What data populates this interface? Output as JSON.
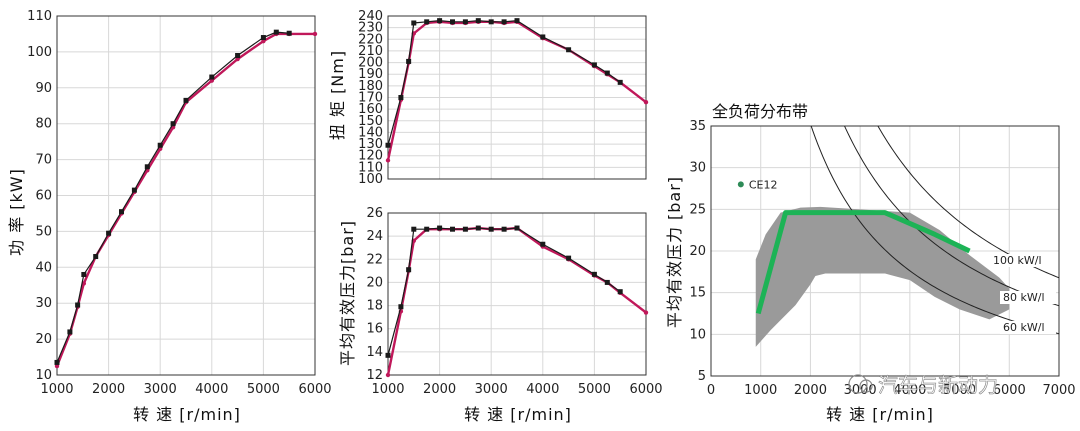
{
  "chart_data": [
    {
      "type": "line",
      "ylabel": "功 率 [kW]",
      "xlabel": "转 速 [r/min]",
      "xlim": [
        1000,
        6000
      ],
      "ylim": [
        10,
        110
      ],
      "xticks": [
        1000,
        2000,
        3000,
        4000,
        5000,
        6000
      ],
      "yticks": [
        10,
        20,
        30,
        40,
        50,
        60,
        70,
        80,
        90,
        100,
        110
      ],
      "grid": true,
      "series": [
        {
          "color": "#c0185a",
          "style": "dot",
          "x": [
            1000,
            1250,
            1400,
            1520,
            1750,
            2000,
            2250,
            2500,
            2750,
            3000,
            3250,
            3500,
            4000,
            4500,
            5000,
            5250,
            5500,
            6000
          ],
          "y": [
            12.5,
            21.5,
            29,
            35.5,
            43,
            49,
            55,
            61,
            67,
            73,
            79,
            86,
            92,
            98,
            103,
            105,
            105,
            105
          ]
        },
        {
          "color": "#1a1a1a",
          "style": "square",
          "x": [
            1000,
            1250,
            1400,
            1520,
            1750,
            2000,
            2250,
            2500,
            2750,
            3000,
            3250,
            3500,
            4000,
            4500,
            5000,
            5250,
            5500
          ],
          "y": [
            13.5,
            22,
            29.5,
            38,
            43,
            49.5,
            55.5,
            61.5,
            68,
            74,
            80,
            86.5,
            93,
            99,
            104,
            105.5,
            105.2
          ]
        }
      ]
    },
    {
      "type": "line",
      "ylabel": "扭 矩 [Nm]",
      "xlim": [
        1000,
        6000
      ],
      "ylim": [
        100,
        240
      ],
      "yticks": [
        100,
        110,
        120,
        130,
        140,
        150,
        160,
        170,
        180,
        190,
        200,
        210,
        220,
        230,
        240
      ],
      "grid": true,
      "series": [
        {
          "color": "#c0185a",
          "style": "dot",
          "x": [
            1000,
            1250,
            1400,
            1500,
            1750,
            2000,
            2250,
            2500,
            2750,
            3000,
            3250,
            3500,
            4000,
            4500,
            5000,
            5250,
            5500,
            6000
          ],
          "y": [
            116,
            168,
            200,
            225,
            234,
            235,
            234,
            234,
            235,
            235,
            234,
            235,
            221,
            211,
            197,
            190,
            183,
            166
          ]
        },
        {
          "color": "#1a1a1a",
          "style": "square",
          "x": [
            1000,
            1250,
            1400,
            1500,
            1750,
            2000,
            2250,
            2500,
            2750,
            3000,
            3250,
            3500,
            4000,
            4500,
            5000,
            5250,
            5500
          ],
          "y": [
            129,
            170,
            201,
            234,
            235,
            236,
            235,
            235,
            236,
            235,
            235,
            236,
            222,
            211,
            198,
            191,
            183
          ]
        }
      ]
    },
    {
      "type": "line",
      "ylabel": "平均有效压力[bar]",
      "xlabel": "转 速 [r/min]",
      "xlim": [
        1000,
        6000
      ],
      "ylim": [
        12,
        26
      ],
      "xticks": [
        1000,
        2000,
        3000,
        4000,
        5000,
        6000
      ],
      "yticks": [
        12,
        14,
        16,
        18,
        20,
        22,
        24,
        26
      ],
      "grid": true,
      "series": [
        {
          "color": "#c0185a",
          "style": "dot",
          "x": [
            1000,
            1250,
            1400,
            1500,
            1750,
            2000,
            2250,
            2500,
            2750,
            3000,
            3250,
            3500,
            4000,
            4500,
            5000,
            5250,
            5500,
            6000
          ],
          "y": [
            12.0,
            17.5,
            21.0,
            23.6,
            24.6,
            24.6,
            24.6,
            24.6,
            24.7,
            24.6,
            24.6,
            24.7,
            23.1,
            22.0,
            20.6,
            20.0,
            19.1,
            17.4
          ]
        },
        {
          "color": "#1a1a1a",
          "style": "square",
          "x": [
            1000,
            1250,
            1400,
            1500,
            1750,
            2000,
            2250,
            2500,
            2750,
            3000,
            3250,
            3500,
            4000,
            4500,
            5000,
            5250,
            5500
          ],
          "y": [
            13.7,
            17.9,
            21.1,
            24.6,
            24.6,
            24.7,
            24.6,
            24.6,
            24.7,
            24.6,
            24.6,
            24.7,
            23.3,
            22.1,
            20.7,
            20.0,
            19.2
          ]
        }
      ]
    },
    {
      "type": "area",
      "title": "全负荷分布带",
      "ylabel": "平均有效压力 [bar]",
      "xlabel": "转 速 [r/min]",
      "xlim": [
        0,
        7000
      ],
      "ylim": [
        5,
        35
      ],
      "xticks": [
        0,
        1000,
        2000,
        3000,
        4000,
        5000,
        6000,
        7000
      ],
      "yticks": [
        5,
        10,
        15,
        20,
        25,
        30,
        35
      ],
      "grid": true,
      "band": {
        "color": "#9a9a9a",
        "upper": {
          "x": [
            900,
            1100,
            1400,
            1800,
            2200,
            3000,
            4000,
            4600,
            5200,
            5800,
            6000
          ],
          "y": [
            19,
            22,
            24.6,
            25.2,
            25.3,
            25.0,
            24.6,
            22.5,
            19.5,
            16.8,
            15.5
          ]
        },
        "lower": {
          "x": [
            900,
            1200,
            1700,
            2000,
            2100,
            2300,
            3000,
            3500,
            4000,
            4500,
            5000,
            5600,
            6000
          ],
          "y": [
            8.5,
            10.5,
            13.5,
            16,
            17,
            17.3,
            17.3,
            17.3,
            16.5,
            14.5,
            13,
            11.8,
            13
          ]
        }
      },
      "highlight": {
        "color": "#1db356",
        "x": [
          950,
          1500,
          2000,
          3000,
          3500,
          4500,
          5200
        ],
        "y": [
          12.5,
          24.6,
          24.6,
          24.6,
          24.6,
          22.0,
          20.0
        ]
      },
      "point": {
        "label": "CE12",
        "x": 600,
        "y": 28,
        "color": "#2e8b57"
      },
      "power_lines": [
        {
          "label": "100 kW/l",
          "c": 100
        },
        {
          "label": "80 kW/l",
          "c": 80
        },
        {
          "label": "60 kW/l",
          "c": 60
        }
      ]
    }
  ],
  "watermark": "汽车与新动力"
}
